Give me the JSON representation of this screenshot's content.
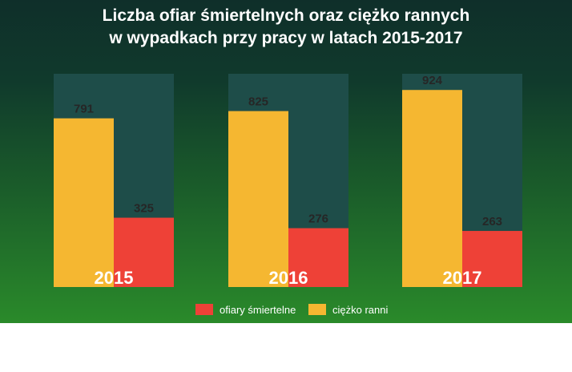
{
  "chart_data": {
    "type": "bar",
    "title_lines": [
      "Liczba ofiar śmiertelnych oraz ciężko rannych",
      "w wypadkach przy pracy w latach 2015-2017"
    ],
    "categories": [
      "2015",
      "2016",
      "2017"
    ],
    "series": [
      {
        "name": "ciężko ranni",
        "values": [
          791,
          825,
          924
        ],
        "color": "#f5b731"
      },
      {
        "name": "ofiary śmiertelne",
        "values": [
          325,
          276,
          263
        ],
        "color": "#ee4137"
      }
    ],
    "legend": [
      {
        "label": "ofiary śmiertelne",
        "color": "#ee4137"
      },
      {
        "label": "ciężko ranni",
        "color": "#f5b731"
      }
    ],
    "ylim": [
      0,
      1000
    ],
    "grid": false,
    "legend_position": "bottom",
    "panel_color": "#1e4d49",
    "value_label_color": "#262626",
    "category_label_color": "#ffffff"
  }
}
